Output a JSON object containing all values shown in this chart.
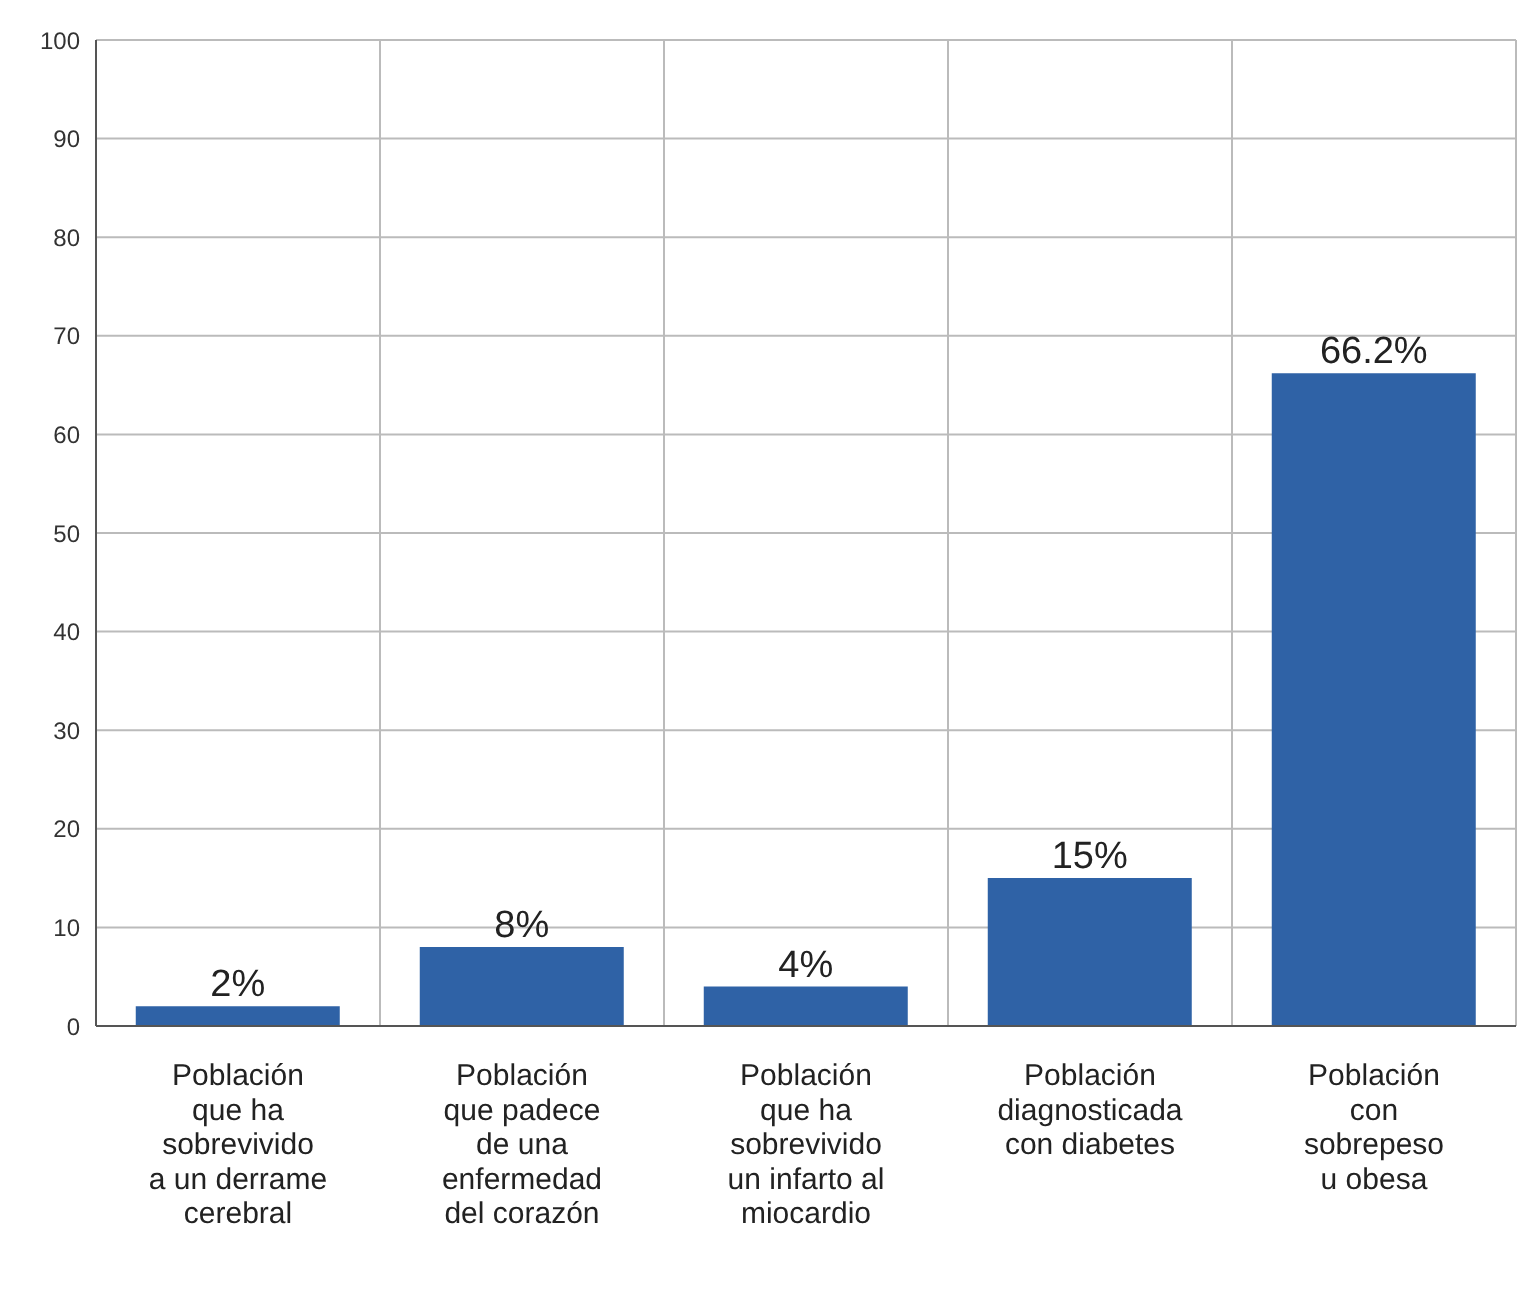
{
  "chart_data": {
    "type": "bar",
    "categories": [
      "Población\nque ha\nsobrevivido\na un derrame\ncerebral",
      "Población\nque padece\nde una\nenfermedad\ndel corazón",
      "Población\nque ha\nsobrevivido\nun infarto al\nmiocardio",
      "Población\ndiagnosticada\ncon diabetes",
      "Población\ncon\nsobrepeso\nu obesa"
    ],
    "values": [
      2,
      8,
      4,
      15,
      66.2
    ],
    "value_labels": [
      "2%",
      "8%",
      "4%",
      "15%",
      "66.2%"
    ],
    "color": "#2f62a6",
    "ylim": [
      0,
      100
    ],
    "yticks": [
      0,
      10,
      20,
      30,
      40,
      50,
      60,
      70,
      80,
      90,
      100
    ],
    "grid": true
  }
}
